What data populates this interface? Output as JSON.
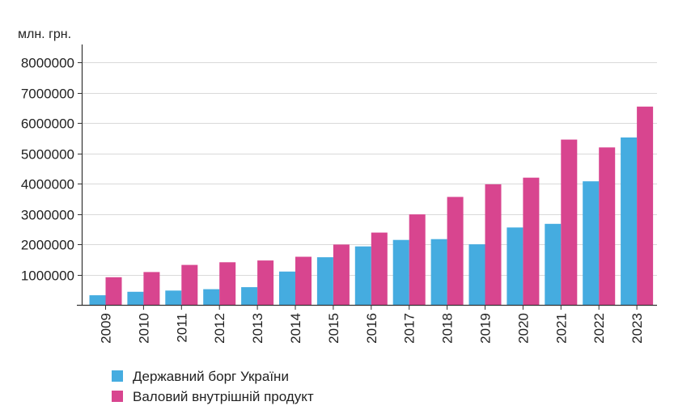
{
  "chart_data": {
    "type": "bar",
    "unit_label": "млн. грн.",
    "categories": [
      "2009",
      "2010",
      "2011",
      "2012",
      "2013",
      "2014",
      "2015",
      "2016",
      "2017",
      "2018",
      "2019",
      "2020",
      "2021",
      "2022",
      "2023"
    ],
    "series": [
      {
        "name": "Державний борг України",
        "color": "#45ace0",
        "values": [
          317000,
          432000,
          473000,
          516000,
          584000,
          1100000,
          1572000,
          1929000,
          2141000,
          2168000,
          1998000,
          2551000,
          2671000,
          4075000,
          5520000
        ]
      },
      {
        "name": "Валовий внутрішній продукт",
        "color": "#d8458f",
        "values": [
          913000,
          1083000,
          1317000,
          1405000,
          1465000,
          1587000,
          1989000,
          2385000,
          2983000,
          3561000,
          3975000,
          4194000,
          5451000,
          5192000,
          6540000
        ]
      }
    ],
    "y_ticks": [
      "1000000",
      "2000000",
      "3000000",
      "4000000",
      "5000000",
      "6000000",
      "7000000",
      "8000000"
    ],
    "ylim": [
      0,
      8500000
    ],
    "grid": true,
    "legend_position": "bottom-left"
  }
}
